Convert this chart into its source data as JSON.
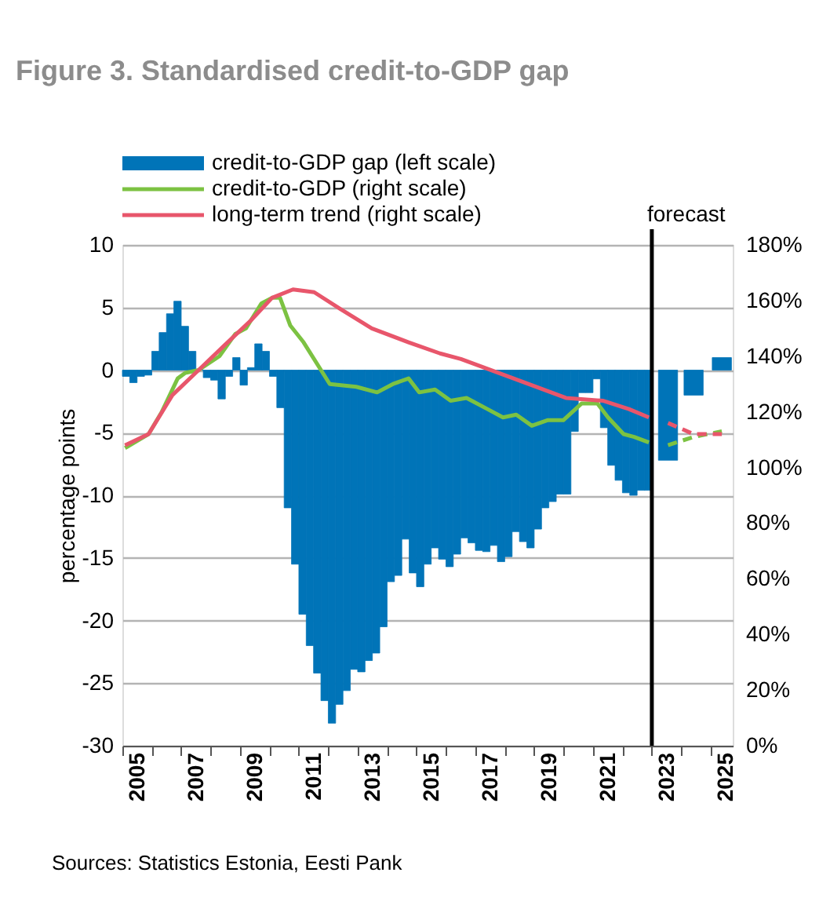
{
  "chart_data": {
    "type": "bar",
    "title": "Figure 3. Standardised credit-to-GDP gap",
    "ylabel": "percentage points",
    "annotations": [
      "Sources: Statistics Estonia, Eesti Pank"
    ],
    "legend": "top left",
    "grid": "y",
    "xlim": [
      2005,
      2025.75
    ],
    "xticks": [
      {
        "value": 2005,
        "label": null
      },
      {
        "value": 2006,
        "label": null
      },
      {
        "value": 2007,
        "label": null
      },
      {
        "value": 2008,
        "label": null
      },
      {
        "value": 2009,
        "label": null
      },
      {
        "value": 2010,
        "label": null
      },
      {
        "value": 2011,
        "label": null
      },
      {
        "value": 2012,
        "label": null
      },
      {
        "value": 2013,
        "label": null
      },
      {
        "value": 2014,
        "label": null
      },
      {
        "value": 2015,
        "label": null
      },
      {
        "value": 2016,
        "label": null
      },
      {
        "value": 2017,
        "label": null
      },
      {
        "value": 2018,
        "label": null
      },
      {
        "value": 2019,
        "label": null
      },
      {
        "value": 2020,
        "label": null
      },
      {
        "value": 2021,
        "label": null
      },
      {
        "value": 2022,
        "label": null
      },
      {
        "value": 2023,
        "label": null
      },
      {
        "value": 2024,
        "label": null
      },
      {
        "value": 2025,
        "label": null
      },
      {
        "value": 2005.5,
        "label": "2005"
      },
      {
        "value": 2007.5,
        "label": "2007"
      },
      {
        "value": 2009.5,
        "label": "2009"
      },
      {
        "value": 2011.5,
        "label": "2011"
      },
      {
        "value": 2013.5,
        "label": "2013"
      },
      {
        "value": 2015.5,
        "label": "2015"
      },
      {
        "value": 2017.5,
        "label": "2017"
      },
      {
        "value": 2019.5,
        "label": "2019"
      },
      {
        "value": 2021.5,
        "label": "2021"
      },
      {
        "value": 2023.5,
        "label": "2023"
      },
      {
        "value": 2025.5,
        "label": "2025"
      }
    ],
    "ylim": [
      -30,
      10
    ],
    "yticks": [
      -30,
      -25,
      -20,
      -15,
      -10,
      -5,
      0,
      5,
      10
    ],
    "y2lim": [
      0,
      180
    ],
    "y2ticks": [
      {
        "value": 0,
        "label": "0%"
      },
      {
        "value": 20,
        "label": "20%"
      },
      {
        "value": 40,
        "label": "40%"
      },
      {
        "value": 60,
        "label": "60%"
      },
      {
        "value": 80,
        "label": "80%"
      },
      {
        "value": 100,
        "label": "100%"
      },
      {
        "value": 120,
        "label": "120%"
      },
      {
        "value": 140,
        "label": "140%"
      },
      {
        "value": 160,
        "label": "160%"
      },
      {
        "value": 180,
        "label": "180%"
      }
    ],
    "ref_lines": [
      {
        "axis": "x",
        "value": 2023,
        "label": "forecast",
        "color": "#000000"
      }
    ],
    "series": [
      {
        "name": "credit-to-GDP gap (left scale)",
        "color": "#0074b8",
        "x": [
          2005.125,
          2005.375,
          2005.625,
          2005.875,
          2006.125,
          2006.375,
          2006.625,
          2006.875,
          2007.125,
          2007.375,
          2007.625,
          2007.875,
          2008.125,
          2008.375,
          2008.625,
          2008.875,
          2009.125,
          2009.375,
          2009.625,
          2009.875,
          2010.125,
          2010.375,
          2010.625,
          2010.875,
          2011.125,
          2011.375,
          2011.625,
          2011.875,
          2012.125,
          2012.375,
          2012.625,
          2012.875,
          2013.125,
          2013.375,
          2013.625,
          2013.875,
          2014.125,
          2014.375,
          2014.625,
          2014.875,
          2015.125,
          2015.375,
          2015.625,
          2015.875,
          2016.125,
          2016.375,
          2016.625,
          2016.875,
          2017.125,
          2017.375,
          2017.625,
          2017.875,
          2018.125,
          2018.375,
          2018.625,
          2018.875,
          2019.125,
          2019.375,
          2019.625,
          2019.875,
          2020.125,
          2020.375,
          2020.625,
          2020.875,
          2021.125,
          2021.375,
          2021.625,
          2021.875,
          2022.125,
          2022.375,
          2022.625,
          2022.875
        ],
        "values": [
          -0.5,
          -1.0,
          -0.5,
          -0.4,
          1.5,
          3.0,
          4.5,
          5.5,
          3.5,
          1.5,
          0,
          -0.6,
          -0.8,
          -2.3,
          -0.5,
          1.0,
          -1.2,
          0.2,
          2.1,
          1.5,
          -0.5,
          -3.0,
          -11.0,
          -15.5,
          -19.5,
          -22.0,
          -24.2,
          -26.4,
          -28.2,
          -26.7,
          -25.6,
          -23.9,
          -24.1,
          -23.2,
          -22.6,
          -20.5,
          -16.9,
          -16.4,
          -13.5,
          -16.2,
          -17.3,
          -15.5,
          -14.2,
          -15.1,
          -15.7,
          -14.7,
          -13.4,
          -13.8,
          -14.4,
          -14.5,
          -14.0,
          -15.3,
          -14.9,
          -12.9,
          -13.7,
          -14.2,
          -12.7,
          -11.0,
          -10.5,
          -9.9,
          -9.9,
          -4.9,
          -1.8,
          -1.8,
          -0.7,
          -4.6,
          -7.6,
          -8.8,
          -9.8,
          -10.0,
          -9.6,
          -9.6
        ]
      },
      {
        "name": "credit-to-GDP (right scale)",
        "type": "line",
        "axis": "y2",
        "color": "#7cc242",
        "x": [
          2005.09,
          2005.89,
          2006.34,
          2006.88,
          2007.14,
          2007.59,
          2008.3,
          2008.84,
          2009.2,
          2009.73,
          2010.09,
          2010.36,
          2010.71,
          2011.16,
          2012.05,
          2012.95,
          2013.66,
          2014.2,
          2014.73,
          2015.09,
          2015.63,
          2016.16,
          2016.7,
          2017.41,
          2017.94,
          2018.39,
          2018.92,
          2019.45,
          2019.99,
          2020.61,
          2021.15,
          2021.51,
          2022.04,
          2022.4,
          2022.9
        ],
        "values": [
          107,
          112,
          120,
          132,
          134,
          135,
          140,
          148,
          150,
          159,
          161,
          161,
          151,
          145,
          130,
          129,
          127,
          130,
          132,
          127,
          128,
          124,
          125,
          121,
          118,
          119,
          115,
          117,
          117,
          123,
          123,
          118,
          112,
          111,
          109
        ]
      },
      {
        "name": "long-term trend (right scale)",
        "type": "line",
        "axis": "y2",
        "color": "#e8566b",
        "x": [
          2005.09,
          2005.89,
          2006.7,
          2007.59,
          2008.48,
          2009.38,
          2010.09,
          2010.8,
          2011.52,
          2012.41,
          2013.48,
          2014.73,
          2015.8,
          2016.51,
          2018.3,
          2020.08,
          2021.33,
          2022.22,
          2022.9
        ],
        "values": [
          108,
          112,
          126,
          135,
          144,
          153,
          161,
          164,
          163,
          157,
          150,
          145,
          141,
          139,
          132,
          125,
          124,
          121,
          118
        ]
      },
      {
        "color": "#0074b8",
        "x": [
          2023.55,
          2024.42,
          2025.38
        ],
        "values": [
          -7.2,
          -2.0,
          1.0
        ]
      },
      {
        "type": "line",
        "axis": "y2",
        "color": "#7cc242",
        "line_style": "dashed",
        "x": [
          2023.55,
          2024.42,
          2025.38
        ],
        "values": [
          108,
          111,
          113
        ]
      },
      {
        "type": "line",
        "axis": "y2",
        "color": "#e8566b",
        "line_style": "dashed",
        "x": [
          2023.55,
          2024.42,
          2025.38
        ],
        "values": [
          116,
          112,
          112
        ]
      }
    ]
  }
}
